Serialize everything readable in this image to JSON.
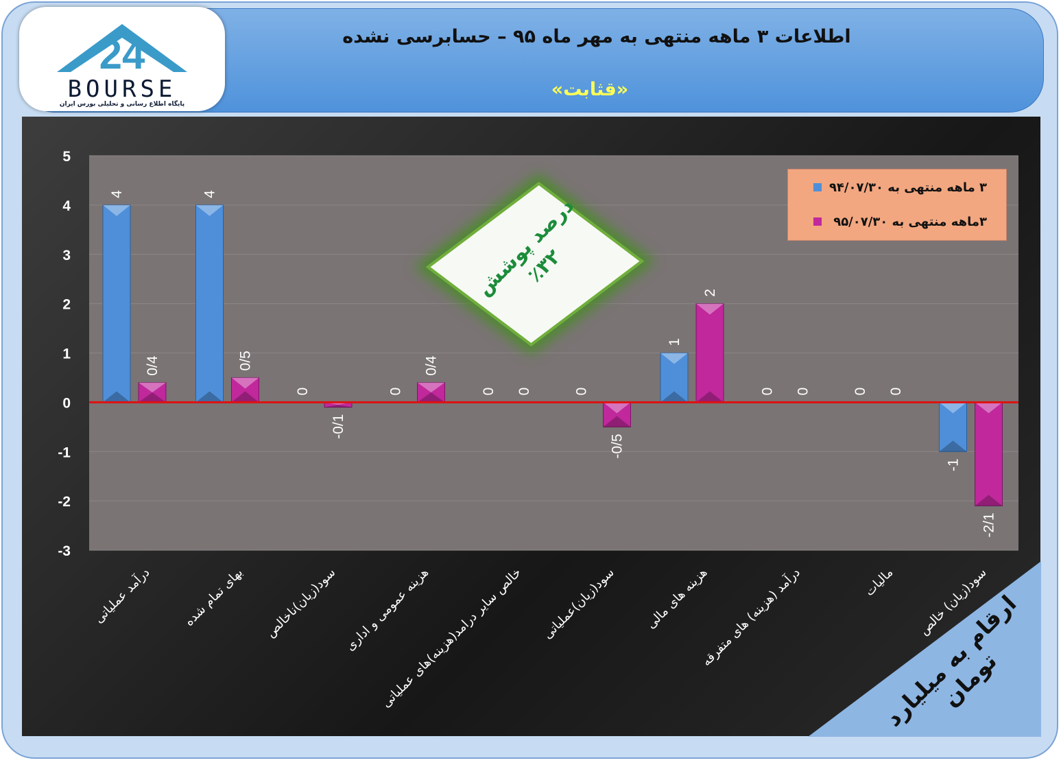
{
  "header": {
    "title": "اطلاعات ۳  ماهه منتهی به مهر ماه ۹۵ – حسابرسی نشده",
    "subtitle": "«قثابت»",
    "logo_text": "BOURSE",
    "logo_number": "24",
    "logo_sub": "پایگاه اطلاع رسانی و تحلیلی بورس ایران"
  },
  "coverage": {
    "label": "درصد پوشش",
    "value": "٪۳۲"
  },
  "units_note": "ارقام به میلیارد تومان",
  "colors": {
    "series1": "#4f8fd9",
    "series2": "#c0289c",
    "zero_line": "#e01010"
  },
  "chart_data": {
    "type": "bar",
    "ylim": [
      -3,
      5
    ],
    "yticks": [
      "-3",
      "-2",
      "-1",
      "0",
      "1",
      "2",
      "3",
      "4",
      "5"
    ],
    "categories": [
      "درآمد عملیاتی",
      "بهای تمام شده",
      "سود(زیان)ناخالص",
      "هزینه عمومی و اداری",
      "خالص سایر درامد(هزینه)های عملیاتی",
      "سود(زیان)عملیاتی",
      "هزینه های مالی",
      "درآمد (هزینه) های متفرقه",
      "مالیات",
      "سود(زیان) خالص"
    ],
    "series": [
      {
        "name": "۳ ماهه منتهی به  ۹۴/۰۷/۳۰",
        "values": [
          4,
          4,
          0,
          0,
          0,
          0,
          1,
          0,
          0,
          -1
        ],
        "labels": [
          "4",
          "4",
          "0",
          "0",
          "0",
          "0",
          "1",
          "0",
          "0",
          "-1"
        ]
      },
      {
        "name": "۳ماهه منتهی به  ۹۵/۰۷/۳۰",
        "values": [
          0.4,
          0.5,
          -0.1,
          0.4,
          0,
          -0.5,
          2,
          0,
          0,
          -2.1
        ],
        "labels": [
          "0/4",
          "0/5",
          "-0/1",
          "0/4",
          "0",
          "-0/5",
          "2",
          "0",
          "0",
          "-2/1"
        ]
      }
    ],
    "legend_position": "top-right",
    "grid": true
  }
}
